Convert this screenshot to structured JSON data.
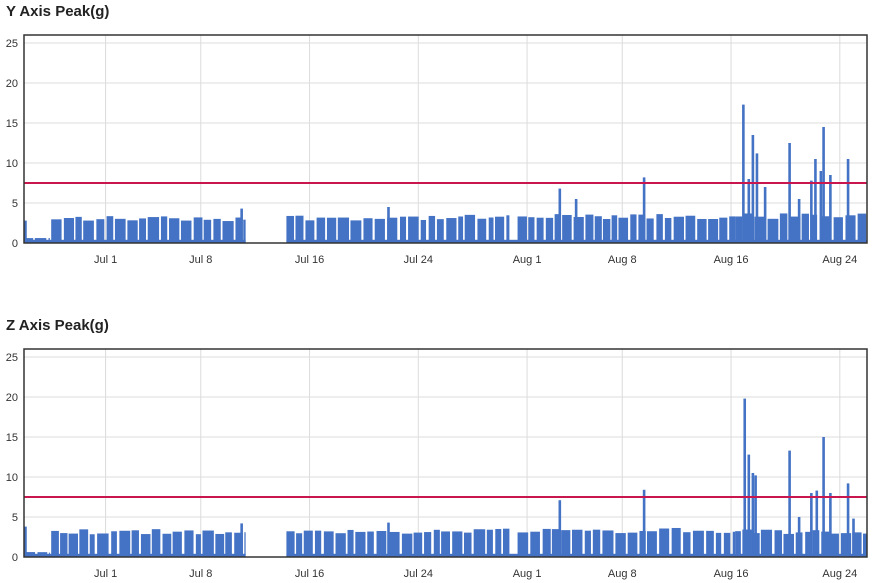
{
  "charts": [
    {
      "title": "Y Axis Peak(g)"
    },
    {
      "title": "Z Axis Peak(g)"
    }
  ],
  "chart_data": [
    {
      "type": "area",
      "title": "Y Axis Peak(g)",
      "xlabel": "",
      "ylabel": "",
      "ylim": [
        0,
        26
      ],
      "yticks": [
        0,
        5,
        10,
        15,
        20,
        25
      ],
      "xlim": [
        "Jun 25",
        "Aug 26"
      ],
      "xticks": [
        "Jul 1",
        "Jul 8",
        "Jul 16",
        "Jul 24",
        "Aug 1",
        "Aug 8",
        "Aug 16",
        "Aug 24"
      ],
      "grid": true,
      "threshold": {
        "value": 7.5,
        "color": "#c8174f"
      },
      "series_color": "#4472c4",
      "baseline": 0.4,
      "segments": [
        {
          "start": "Jun 25.0",
          "end": "Jun 26.9",
          "level": 0.6
        },
        {
          "start": "Jun 27.0",
          "end": "Jul 11.3",
          "level": 3.1
        },
        {
          "start": "Jul 14.3",
          "end": "Jul 30.7",
          "level": 3.2
        },
        {
          "start": "Jul 31.3",
          "end": "Aug 16.3",
          "level": 3.3
        },
        {
          "start": "Aug 16.3",
          "end": "Aug 26.0",
          "level": 3.4
        }
      ],
      "spikes": [
        {
          "x": "Jun 25.1",
          "y": 2.8
        },
        {
          "x": "Jul 11.0",
          "y": 4.3
        },
        {
          "x": "Jul 21.8",
          "y": 4.5
        },
        {
          "x": "Aug 3.4",
          "y": 6.8
        },
        {
          "x": "Aug 4.6",
          "y": 5.5
        },
        {
          "x": "Aug 9.6",
          "y": 8.2
        },
        {
          "x": "Aug 16.9",
          "y": 17.3
        },
        {
          "x": "Aug 17.3",
          "y": 8.0
        },
        {
          "x": "Aug 17.6",
          "y": 13.5
        },
        {
          "x": "Aug 17.9",
          "y": 11.2
        },
        {
          "x": "Aug 18.5",
          "y": 7.0
        },
        {
          "x": "Aug 20.3",
          "y": 12.5
        },
        {
          "x": "Aug 21.0",
          "y": 5.5
        },
        {
          "x": "Aug 21.9",
          "y": 7.8
        },
        {
          "x": "Aug 22.2",
          "y": 10.5
        },
        {
          "x": "Aug 22.6",
          "y": 9.0
        },
        {
          "x": "Aug 22.8",
          "y": 14.5
        },
        {
          "x": "Aug 23.3",
          "y": 8.5
        },
        {
          "x": "Aug 24.6",
          "y": 10.5
        }
      ]
    },
    {
      "type": "area",
      "title": "Z Axis Peak(g)",
      "xlabel": "",
      "ylabel": "",
      "ylim": [
        0,
        26
      ],
      "yticks": [
        0,
        5,
        10,
        15,
        20,
        25
      ],
      "xlim": [
        "Jun 25",
        "Aug 26"
      ],
      "xticks": [
        "Jul 1",
        "Jul 8",
        "Jul 16",
        "Jul 24",
        "Aug 1",
        "Aug 8",
        "Aug 16",
        "Aug 24"
      ],
      "grid": true,
      "threshold": {
        "value": 7.5,
        "color": "#c8174f"
      },
      "series_color": "#4472c4",
      "baseline": 0.4,
      "segments": [
        {
          "start": "Jun 25.0",
          "end": "Jun 26.9",
          "level": 0.6
        },
        {
          "start": "Jun 27.0",
          "end": "Jul 11.3",
          "level": 3.2
        },
        {
          "start": "Jul 14.3",
          "end": "Jul 30.7",
          "level": 3.3
        },
        {
          "start": "Jul 31.3",
          "end": "Aug 16.3",
          "level": 3.4
        },
        {
          "start": "Aug 16.3",
          "end": "Aug 26.0",
          "level": 3.2
        }
      ],
      "spikes": [
        {
          "x": "Jun 25.1",
          "y": 3.8
        },
        {
          "x": "Jul 11.0",
          "y": 4.2
        },
        {
          "x": "Jul 21.8",
          "y": 4.3
        },
        {
          "x": "Aug 3.4",
          "y": 7.1
        },
        {
          "x": "Aug 9.6",
          "y": 8.4
        },
        {
          "x": "Aug 17.0",
          "y": 19.8
        },
        {
          "x": "Aug 17.3",
          "y": 12.8
        },
        {
          "x": "Aug 17.6",
          "y": 10.5
        },
        {
          "x": "Aug 17.8",
          "y": 10.2
        },
        {
          "x": "Aug 20.3",
          "y": 13.3
        },
        {
          "x": "Aug 21.0",
          "y": 5.0
        },
        {
          "x": "Aug 21.9",
          "y": 8.0
        },
        {
          "x": "Aug 22.3",
          "y": 8.3
        },
        {
          "x": "Aug 22.8",
          "y": 15.0
        },
        {
          "x": "Aug 23.3",
          "y": 8.0
        },
        {
          "x": "Aug 24.6",
          "y": 9.2
        },
        {
          "x": "Aug 25.0",
          "y": 4.8
        }
      ]
    }
  ]
}
